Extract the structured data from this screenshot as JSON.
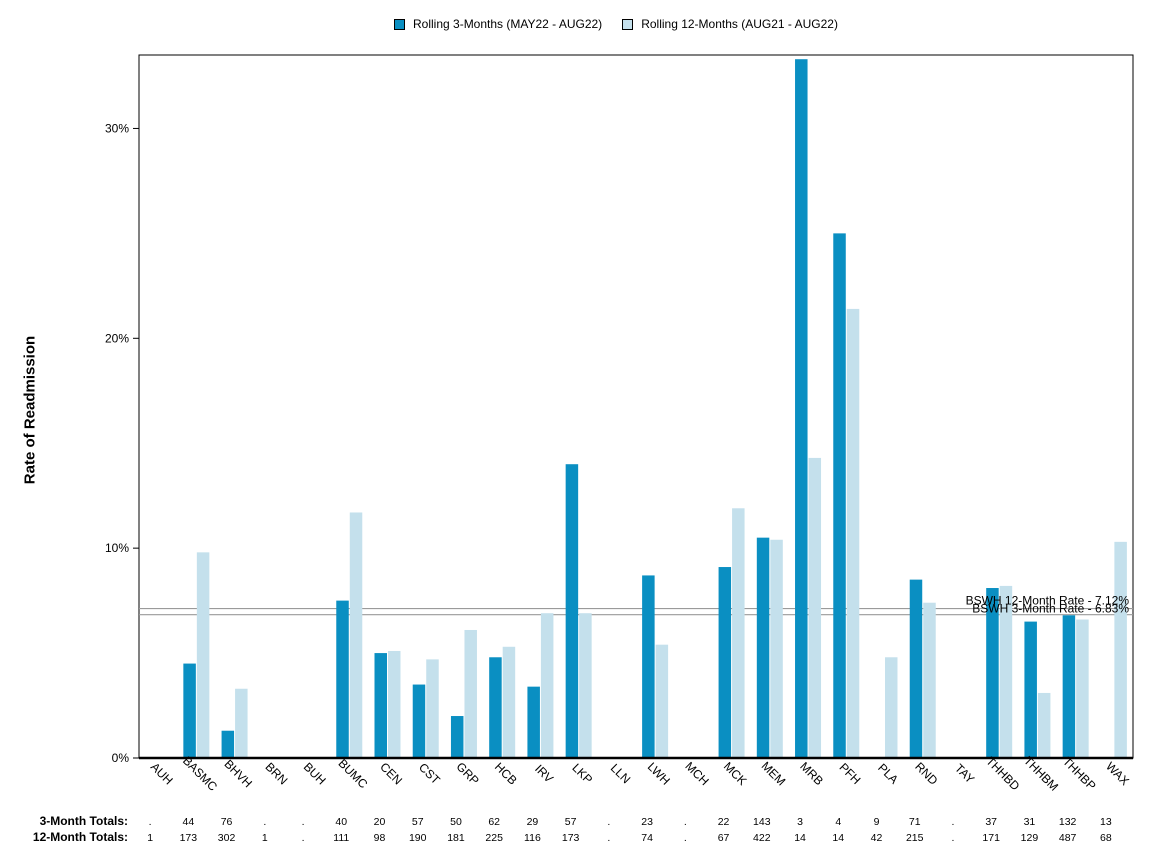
{
  "chart_data": {
    "type": "bar",
    "title": "",
    "xlabel": "",
    "ylabel": "Rate of Readmission",
    "ylim": [
      0,
      33.5
    ],
    "yticks": [
      0,
      10,
      20,
      30
    ],
    "ytick_labels": [
      "0%",
      "10%",
      "20%",
      "30%"
    ],
    "grid": false,
    "legend_position": "top-center",
    "categories": [
      "AUH",
      "BASMC",
      "BHVH",
      "BRN",
      "BUH",
      "BUMC",
      "CEN",
      "CST",
      "GRP",
      "HCB",
      "IRV",
      "LKP",
      "LLN",
      "LWH",
      "MCH",
      "MCK",
      "MEM",
      "MRB",
      "PFH",
      "PLA",
      "RND",
      "TAY",
      "THHBD",
      "THHBM",
      "THHBP",
      "WAX"
    ],
    "series": [
      {
        "name": "Rolling 3-Months (MAY22 - AUG22)",
        "color": "#0a8fc2",
        "values": [
          0,
          4.5,
          1.3,
          0,
          0,
          7.5,
          5.0,
          3.5,
          2.0,
          4.8,
          3.4,
          14.0,
          0,
          8.7,
          0,
          9.1,
          10.5,
          33.3,
          25.0,
          0,
          8.5,
          0,
          8.1,
          6.5,
          6.8,
          0
        ]
      },
      {
        "name": "Rolling 12-Months (AUG21 - AUG22)",
        "color": "#c4e0ec",
        "values": [
          0,
          9.8,
          3.3,
          0,
          0,
          11.7,
          5.1,
          4.7,
          6.1,
          5.3,
          6.9,
          6.9,
          0,
          5.4,
          0,
          11.9,
          10.4,
          14.3,
          21.4,
          4.8,
          7.4,
          0,
          8.2,
          3.1,
          6.6,
          10.3
        ]
      }
    ],
    "reference_lines": [
      {
        "label": "BSWH 12-Month Rate - 7.12%",
        "value": 7.12
      },
      {
        "label": "BSWH 3-Month Rate - 6.83%",
        "value": 6.83
      }
    ],
    "totals": {
      "three_month_label": "3-Month Totals:",
      "twelve_month_label": "12-Month Totals:",
      "three_month": [
        ".",
        "44",
        "76",
        ".",
        ".",
        "40",
        "20",
        "57",
        "50",
        "62",
        "29",
        "57",
        ".",
        "23",
        ".",
        "22",
        "143",
        "3",
        "4",
        "9",
        "71",
        ".",
        "37",
        "31",
        "132",
        "13"
      ],
      "twelve_month": [
        "1",
        "173",
        "302",
        "1",
        ".",
        "111",
        "98",
        "190",
        "181",
        "225",
        "116",
        "173",
        ".",
        "74",
        ".",
        "67",
        "422",
        "14",
        "14",
        "42",
        "215",
        ".",
        "171",
        "129",
        "487",
        "68"
      ]
    }
  }
}
